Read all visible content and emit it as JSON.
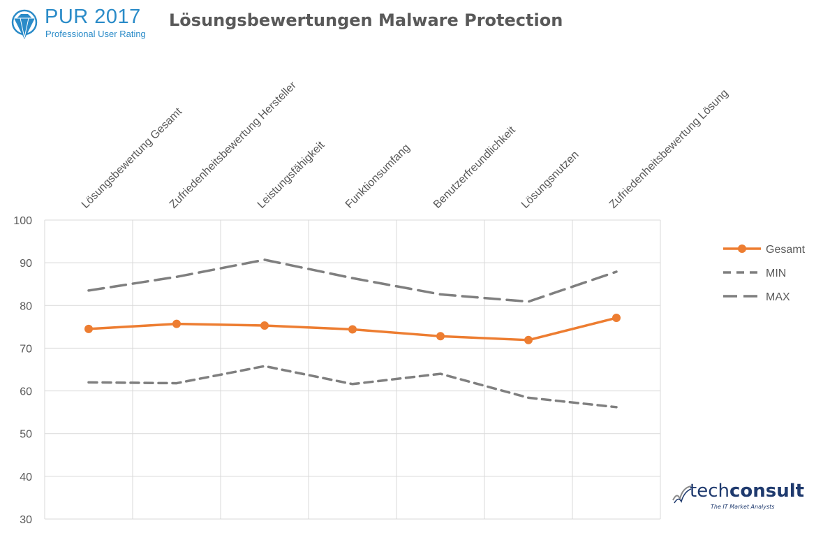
{
  "header": {
    "logo_main": "PUR 2017",
    "logo_sub": "Professional User Rating",
    "title": "Lösungsbewertungen Malware Protection"
  },
  "brand": {
    "name_light": "tech",
    "name_bold": "consult",
    "tagline": "The IT Market Analysts"
  },
  "colors": {
    "gesamt": "#ed7d31",
    "minmax": "#7f7f7f",
    "grid": "#d9d9d9",
    "logo": "#2a8bc8",
    "brand": "#1f3a6e"
  },
  "chart_data": {
    "type": "line",
    "categories": [
      "Lösungsbewertung Gesamt",
      "Zufriedenheitsbewertung Hersteller",
      "Leistungsfähigkeit",
      "Funktionsumfang",
      "Benutzerfreundlichkeit",
      "Lösungsnutzen",
      "Zufriedenheitsbewertung Lösung"
    ],
    "series": [
      {
        "name": "Gesamt",
        "style": "solid-markers",
        "values": [
          74.5,
          75.7,
          75.3,
          74.4,
          72.8,
          71.9,
          77.1
        ]
      },
      {
        "name": "MIN",
        "style": "dashed",
        "values": [
          62.0,
          61.8,
          65.8,
          61.6,
          64.0,
          58.4,
          56.2
        ]
      },
      {
        "name": "MAX",
        "style": "long-dashed",
        "values": [
          83.5,
          86.7,
          90.7,
          86.4,
          82.6,
          80.9,
          87.9
        ]
      }
    ],
    "ylim": [
      30,
      100
    ],
    "yticks": [
      30,
      40,
      50,
      60,
      70,
      80,
      90,
      100
    ],
    "grid": true,
    "legend": "right"
  }
}
